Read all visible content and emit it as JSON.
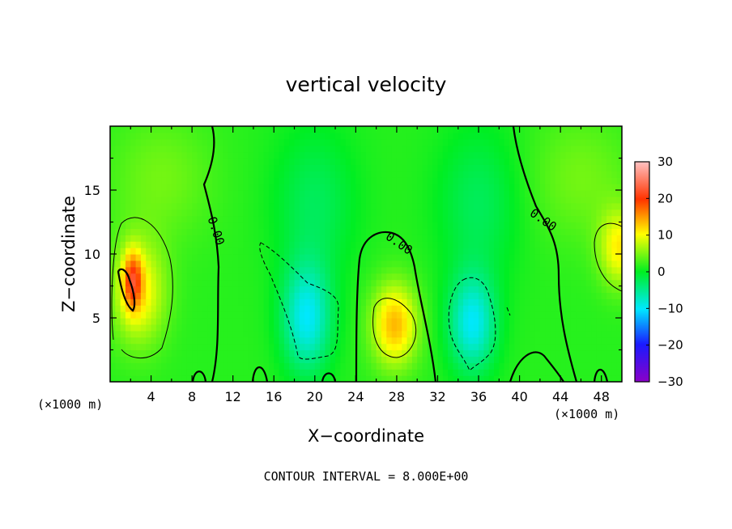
{
  "chart_data": {
    "type": "heatmap",
    "title": "vertical velocity",
    "xlabel": "X−coordinate",
    "ylabel": "Z−coordinate",
    "x_unit": "(×1000 m)",
    "x_unit_right": "(×1000 m)",
    "xlim": [
      0,
      50
    ],
    "ylim": [
      0,
      20
    ],
    "x_ticks": [
      4,
      8,
      12,
      16,
      20,
      24,
      28,
      32,
      36,
      40,
      44,
      48
    ],
    "x_tick_labels": [
      "4",
      "8",
      "12",
      "16",
      "20",
      "24",
      "28",
      "32",
      "36",
      "40",
      "44",
      "48"
    ],
    "y_ticks": [
      5,
      10,
      15
    ],
    "y_tick_labels": [
      "5",
      "10",
      "15"
    ],
    "colorbar": {
      "range": [
        -30,
        30
      ],
      "ticks": [
        30,
        20,
        10,
        0,
        -10,
        -20,
        -30
      ],
      "tick_labels": [
        "30",
        "20",
        "10",
        "0",
        "−10",
        "−20",
        "−30"
      ]
    },
    "contour_interval_text": "CONTOUR INTERVAL = 8.000E+00",
    "contour_labels": [
      "0.00",
      "0.00",
      "0.00"
    ],
    "field_features": [
      {
        "kind": "updraft",
        "x": 2.5,
        "z": 7.5,
        "peak": 22
      },
      {
        "kind": "updraft",
        "x": 27.5,
        "z": 4.5,
        "peak": 14
      },
      {
        "kind": "updraft",
        "x": 49.5,
        "z": 10.5,
        "peak": 11
      },
      {
        "kind": "downdraft",
        "x": 19,
        "z": 5,
        "peak": -12
      },
      {
        "kind": "downdraft",
        "x": 35.5,
        "z": 4.5,
        "peak": -11
      }
    ]
  }
}
